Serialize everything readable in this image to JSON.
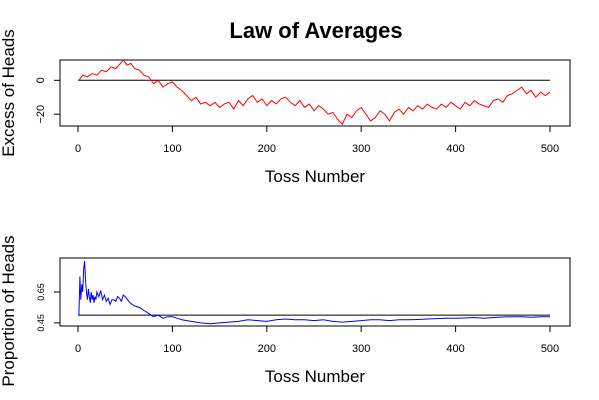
{
  "title": "Law of Averages",
  "chart_data": [
    {
      "type": "line",
      "ylabel": "Excess of Heads",
      "xlabel": "Toss Number",
      "xlim": [
        0,
        500
      ],
      "ylim": [
        -27,
        12
      ],
      "xticks": [
        0,
        100,
        200,
        300,
        400,
        500
      ],
      "xtick_labels": [
        "0",
        "100",
        "200",
        "300",
        "400",
        "500"
      ],
      "yticks": [
        -20,
        0
      ],
      "ytick_labels": [
        "−20",
        "0"
      ],
      "hline": 0,
      "series": [
        {
          "color": "#ff0000",
          "x": [
            1,
            5,
            10,
            15,
            20,
            25,
            30,
            35,
            40,
            45,
            48,
            52,
            56,
            60,
            65,
            70,
            75,
            80,
            85,
            90,
            95,
            100,
            105,
            110,
            115,
            120,
            125,
            130,
            135,
            140,
            145,
            150,
            155,
            160,
            165,
            170,
            175,
            180,
            185,
            190,
            195,
            200,
            205,
            210,
            215,
            220,
            225,
            230,
            235,
            240,
            245,
            250,
            255,
            260,
            265,
            270,
            275,
            280,
            285,
            290,
            295,
            300,
            305,
            310,
            315,
            320,
            325,
            330,
            335,
            340,
            345,
            350,
            355,
            360,
            365,
            370,
            375,
            380,
            385,
            390,
            395,
            400,
            405,
            410,
            415,
            420,
            425,
            430,
            435,
            440,
            445,
            450,
            455,
            460,
            465,
            470,
            475,
            480,
            485,
            490,
            495,
            500
          ],
          "y": [
            0,
            3,
            2,
            4,
            3,
            6,
            5,
            8,
            7,
            10,
            12,
            9,
            10,
            7,
            6,
            3,
            2,
            -2,
            0,
            -4,
            -2,
            -1,
            -4,
            -6,
            -9,
            -12,
            -10,
            -14,
            -13,
            -15,
            -13,
            -16,
            -14,
            -13,
            -17,
            -12,
            -15,
            -11,
            -9,
            -13,
            -11,
            -15,
            -12,
            -14,
            -11,
            -10,
            -13,
            -15,
            -12,
            -16,
            -14,
            -18,
            -15,
            -17,
            -20,
            -19,
            -23,
            -26,
            -20,
            -22,
            -18,
            -16,
            -20,
            -24,
            -22,
            -18,
            -20,
            -24,
            -19,
            -17,
            -20,
            -16,
            -18,
            -15,
            -17,
            -14,
            -16,
            -17,
            -14,
            -16,
            -13,
            -15,
            -17,
            -13,
            -15,
            -12,
            -14,
            -15,
            -16,
            -12,
            -11,
            -13,
            -9,
            -8,
            -6,
            -4,
            -8,
            -6,
            -10,
            -7,
            -9,
            -7
          ]
        }
      ]
    },
    {
      "type": "line",
      "ylabel": "Proportion of Heads",
      "xlabel": "Toss Number",
      "xlim": [
        0,
        500
      ],
      "ylim": [
        0.43,
        0.87
      ],
      "xticks": [
        0,
        100,
        200,
        300,
        400,
        500
      ],
      "xtick_labels": [
        "0",
        "100",
        "200",
        "300",
        "400",
        "500"
      ],
      "yticks": [
        0.45,
        0.65
      ],
      "ytick_labels": [
        "0.45",
        "0.65"
      ],
      "hline": 0.5,
      "series": [
        {
          "color": "#0000ff",
          "x": [
            1,
            2,
            3,
            4,
            5,
            6,
            7,
            8,
            9,
            10,
            11,
            12,
            13,
            14,
            15,
            16,
            17,
            18,
            19,
            20,
            22,
            24,
            26,
            28,
            30,
            32,
            34,
            36,
            38,
            40,
            42,
            44,
            46,
            48,
            50,
            55,
            60,
            65,
            70,
            75,
            80,
            85,
            90,
            95,
            100,
            110,
            120,
            130,
            140,
            150,
            160,
            170,
            180,
            190,
            200,
            210,
            220,
            230,
            240,
            250,
            260,
            270,
            280,
            290,
            300,
            310,
            320,
            330,
            340,
            350,
            360,
            370,
            380,
            390,
            400,
            410,
            420,
            430,
            440,
            450,
            460,
            470,
            480,
            490,
            500
          ],
          "y": [
            0.5,
            0.75,
            0.6,
            0.7,
            0.65,
            0.8,
            0.85,
            0.72,
            0.65,
            0.6,
            0.67,
            0.62,
            0.58,
            0.65,
            0.6,
            0.63,
            0.58,
            0.62,
            0.6,
            0.65,
            0.62,
            0.66,
            0.6,
            0.63,
            0.59,
            0.61,
            0.57,
            0.6,
            0.6,
            0.59,
            0.62,
            0.61,
            0.59,
            0.63,
            0.62,
            0.58,
            0.56,
            0.55,
            0.53,
            0.51,
            0.49,
            0.5,
            0.48,
            0.49,
            0.49,
            0.47,
            0.46,
            0.45,
            0.445,
            0.45,
            0.455,
            0.46,
            0.47,
            0.465,
            0.46,
            0.47,
            0.475,
            0.47,
            0.47,
            0.465,
            0.47,
            0.46,
            0.455,
            0.46,
            0.465,
            0.47,
            0.47,
            0.465,
            0.47,
            0.47,
            0.472,
            0.475,
            0.478,
            0.48,
            0.48,
            0.482,
            0.485,
            0.48,
            0.485,
            0.488,
            0.49,
            0.49,
            0.487,
            0.49,
            0.49
          ]
        }
      ]
    }
  ]
}
